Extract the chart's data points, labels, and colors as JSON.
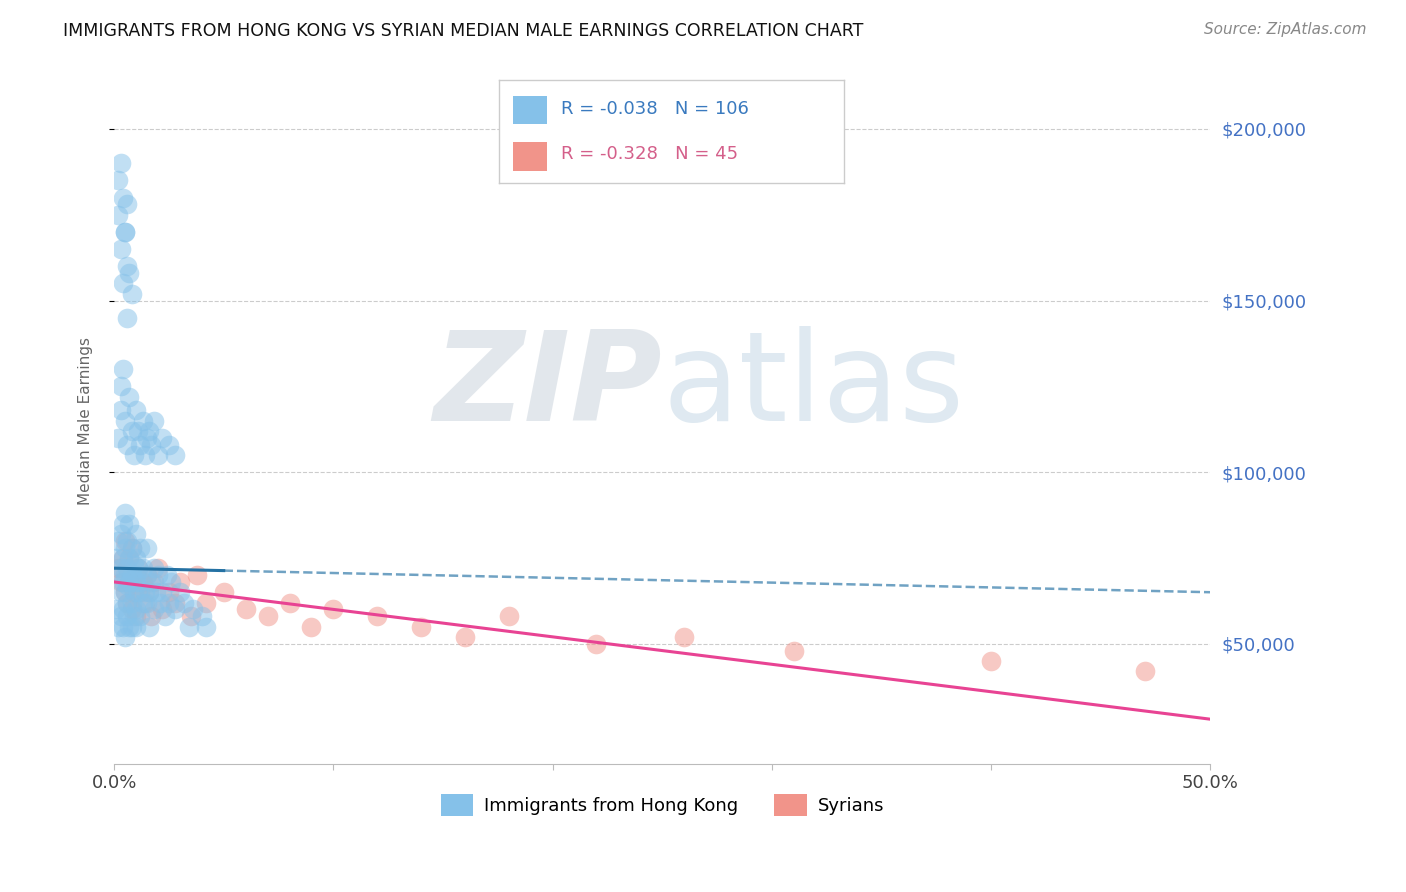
{
  "title": "IMMIGRANTS FROM HONG KONG VS SYRIAN MEDIAN MALE EARNINGS CORRELATION CHART",
  "source": "Source: ZipAtlas.com",
  "ylabel": "Median Male Earnings",
  "xlim": [
    0.0,
    0.5
  ],
  "ylim": [
    15000,
    215000
  ],
  "yticks": [
    50000,
    100000,
    150000,
    200000
  ],
  "ytick_labels": [
    "$50,000",
    "$100,000",
    "$150,000",
    "$200,000"
  ],
  "xticks": [
    0.0,
    0.1,
    0.2,
    0.3,
    0.4,
    0.5
  ],
  "xtick_labels": [
    "0.0%",
    "",
    "",
    "",
    "",
    "50.0%"
  ],
  "legend_label1": "Immigrants from Hong Kong",
  "legend_label2": "Syrians",
  "R1": "-0.038",
  "N1": "106",
  "R2": "-0.328",
  "N2": "45",
  "color_hk": "#85c1e9",
  "color_sy": "#f1948a",
  "color_hk_line": "#2471a3",
  "color_sy_line": "#e84393",
  "background_color": "#ffffff",
  "watermark_zip": "ZIP",
  "watermark_atlas": "atlas",
  "hk_x": [
    0.001,
    0.001,
    0.002,
    0.002,
    0.002,
    0.003,
    0.003,
    0.003,
    0.003,
    0.004,
    0.004,
    0.004,
    0.004,
    0.004,
    0.005,
    0.005,
    0.005,
    0.005,
    0.005,
    0.006,
    0.006,
    0.006,
    0.006,
    0.006,
    0.007,
    0.007,
    0.007,
    0.007,
    0.008,
    0.008,
    0.008,
    0.008,
    0.009,
    0.009,
    0.009,
    0.01,
    0.01,
    0.01,
    0.01,
    0.01,
    0.01,
    0.011,
    0.011,
    0.012,
    0.012,
    0.012,
    0.013,
    0.013,
    0.014,
    0.015,
    0.015,
    0.015,
    0.016,
    0.016,
    0.017,
    0.018,
    0.018,
    0.019,
    0.02,
    0.021,
    0.022,
    0.023,
    0.024,
    0.025,
    0.026,
    0.028,
    0.03,
    0.032,
    0.034,
    0.036,
    0.04,
    0.042,
    0.002,
    0.003,
    0.003,
    0.004,
    0.005,
    0.006,
    0.007,
    0.008,
    0.009,
    0.01,
    0.011,
    0.012,
    0.013,
    0.014,
    0.015,
    0.016,
    0.017,
    0.018,
    0.02,
    0.022,
    0.025,
    0.028,
    0.003,
    0.004,
    0.005,
    0.006,
    0.006,
    0.007,
    0.008,
    0.002,
    0.002,
    0.003,
    0.004,
    0.005,
    0.006
  ],
  "hk_y": [
    60000,
    75000,
    55000,
    70000,
    80000,
    65000,
    72000,
    58000,
    82000,
    68000,
    75000,
    60000,
    85000,
    55000,
    70000,
    65000,
    78000,
    52000,
    88000,
    72000,
    67000,
    58000,
    80000,
    62000,
    75000,
    68000,
    55000,
    85000,
    70000,
    62000,
    78000,
    55000,
    65000,
    73000,
    58000,
    68000,
    75000,
    60000,
    82000,
    55000,
    70000,
    65000,
    72000,
    68000,
    58000,
    78000,
    62000,
    72000,
    65000,
    70000,
    62000,
    78000,
    65000,
    55000,
    68000,
    72000,
    60000,
    65000,
    70000,
    62000,
    65000,
    58000,
    70000,
    62000,
    68000,
    60000,
    65000,
    62000,
    55000,
    60000,
    58000,
    55000,
    110000,
    125000,
    118000,
    130000,
    115000,
    108000,
    122000,
    112000,
    105000,
    118000,
    112000,
    108000,
    115000,
    105000,
    110000,
    112000,
    108000,
    115000,
    105000,
    110000,
    108000,
    105000,
    165000,
    155000,
    170000,
    160000,
    145000,
    158000,
    152000,
    185000,
    175000,
    190000,
    180000,
    170000,
    178000
  ],
  "sy_x": [
    0.002,
    0.003,
    0.004,
    0.005,
    0.005,
    0.006,
    0.006,
    0.007,
    0.007,
    0.008,
    0.008,
    0.009,
    0.01,
    0.01,
    0.011,
    0.012,
    0.013,
    0.014,
    0.015,
    0.016,
    0.017,
    0.018,
    0.02,
    0.022,
    0.025,
    0.028,
    0.03,
    0.035,
    0.038,
    0.042,
    0.05,
    0.06,
    0.07,
    0.08,
    0.09,
    0.1,
    0.12,
    0.14,
    0.16,
    0.18,
    0.22,
    0.26,
    0.31,
    0.4,
    0.47
  ],
  "sy_y": [
    72000,
    68000,
    75000,
    65000,
    80000,
    62000,
    72000,
    68000,
    75000,
    60000,
    78000,
    65000,
    70000,
    58000,
    72000,
    65000,
    68000,
    62000,
    70000,
    65000,
    58000,
    68000,
    72000,
    60000,
    65000,
    62000,
    68000,
    58000,
    70000,
    62000,
    65000,
    60000,
    58000,
    62000,
    55000,
    60000,
    58000,
    55000,
    52000,
    58000,
    50000,
    52000,
    48000,
    45000,
    42000
  ]
}
